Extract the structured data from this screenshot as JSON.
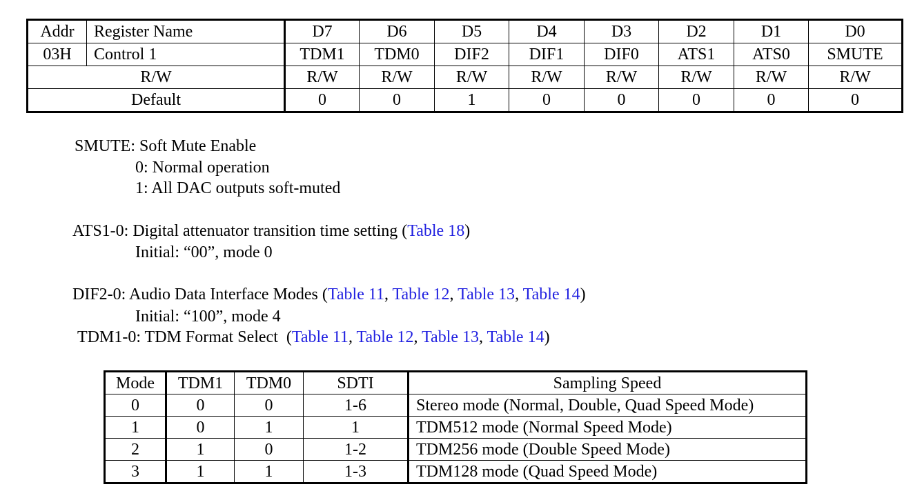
{
  "register_table": {
    "header": [
      "Addr",
      "Register Name",
      "D7",
      "D6",
      "D5",
      "D4",
      "D3",
      "D2",
      "D1",
      "D0"
    ],
    "row": {
      "addr": "03H",
      "name": "Control 1",
      "bits": [
        "TDM1",
        "TDM0",
        "DIF2",
        "DIF1",
        "DIF0",
        "ATS1",
        "ATS0",
        "SMUTE"
      ]
    },
    "rw_label": "R/W",
    "rw_values": [
      "R/W",
      "R/W",
      "R/W",
      "R/W",
      "R/W",
      "R/W",
      "R/W",
      "R/W"
    ],
    "default_label": "Default",
    "default_values": [
      "0",
      "0",
      "1",
      "0",
      "0",
      "0",
      "0",
      "0"
    ]
  },
  "descriptions": {
    "smute": {
      "title": "SMUTE: Soft Mute Enable",
      "line0": "0: Normal operation",
      "line1": "1: All DAC outputs soft-muted"
    },
    "ats": {
      "prefix": "ATS1-0: Digital attenuator transition time setting (",
      "link": "Table 18",
      "suffix": ")",
      "initial": "Initial: “00”, mode 0"
    },
    "dif": {
      "prefix": "DIF2-0: Audio Data Interface Modes (",
      "links": [
        "Table 11",
        "Table 12",
        "Table 13",
        "Table 14"
      ],
      "separator": ", ",
      "suffix": ")",
      "initial": "Initial: “100”, mode 4"
    },
    "tdm": {
      "prefix": "TDM1-0: TDM Format Select  (",
      "links": [
        "Table 11",
        "Table 12",
        "Table 13",
        "Table 14"
      ],
      "separator": ", ",
      "suffix": ")"
    }
  },
  "mode_table": {
    "header": [
      "Mode",
      "TDM1",
      "TDM0",
      "SDTI",
      "Sampling Speed"
    ],
    "rows": [
      [
        "0",
        "0",
        "0",
        "1-6",
        "Stereo mode (Normal, Double, Quad Speed Mode)"
      ],
      [
        "1",
        "0",
        "1",
        "1",
        "TDM512 mode (Normal Speed Mode)"
      ],
      [
        "2",
        "1",
        "0",
        "1-2",
        "TDM256 mode (Double Speed Mode)"
      ],
      [
        "3",
        "1",
        "1",
        "1-3",
        "TDM128 mode (Quad Speed Mode)"
      ]
    ]
  },
  "colors": {
    "link": "#1f1fe0",
    "text": "#000000",
    "border": "#000000"
  }
}
